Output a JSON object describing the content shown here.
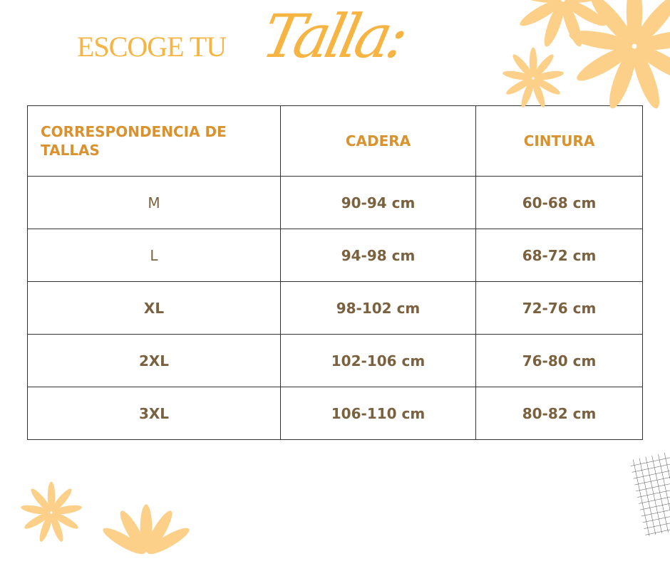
{
  "title": {
    "prefix": "ESCOGE TU",
    "script": "Talla:"
  },
  "table": {
    "headers": [
      "CORRESPONDENCIA DE TALLAS",
      "CADERA",
      "CINTURA"
    ],
    "rows": [
      [
        "M",
        "90-94 cm",
        "60-68 cm"
      ],
      [
        "L",
        "94-98 cm",
        "68-72 cm"
      ],
      [
        "XL",
        "98-102 cm",
        "72-76 cm"
      ],
      [
        "2XL",
        "102-106 cm",
        "76-80 cm"
      ],
      [
        "3XL",
        "106-110 cm",
        "80-82 cm"
      ]
    ]
  },
  "colors": {
    "title": "#f6b443",
    "header_text": "#d9922e",
    "body_text": "#7a6240",
    "flower": "#fdd08a"
  },
  "decorations": [
    "flower-icon",
    "grid-pattern"
  ]
}
